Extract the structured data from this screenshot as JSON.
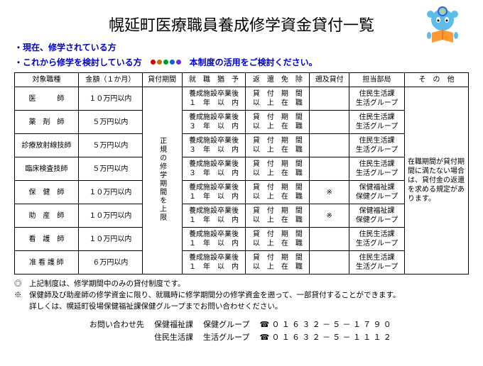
{
  "title": "幌延町医療職員養成修学資金貸付一覧",
  "sub1": "・現在、修学されている方",
  "sub2": "・これから修学を検討している方",
  "sub3": "本制度の活用をご検討ください。",
  "dot_colors": [
    "#cc0000",
    "#cc6600",
    "#009933",
    "#0066cc",
    "#6633cc"
  ],
  "columns": {
    "c0": "対象職種",
    "c1": "金額（１か月）",
    "c2": "貸付期間",
    "c3": "就　職　猶　予",
    "c4": "返　還　免　除",
    "c5": "遡及貸付",
    "c6": "担当部局",
    "c7": "そ　の　他"
  },
  "period_text": "正規の修学期間を上限",
  "rows": [
    {
      "job": "医　　　師",
      "amt": "１０万円以内",
      "grace": "養成施設卒業後１　年　以　内",
      "exempt": "貸　付　期　間以　上　在　職",
      "retro": "",
      "dept": "住民生活課生活グループ"
    },
    {
      "job": "薬　剤　師",
      "amt": "５万円以内",
      "grace": "養成施設卒業後３　年　以　内",
      "exempt": "貸　付　期　間以　上　在　職",
      "retro": "",
      "dept": "住民生活課生活グループ"
    },
    {
      "job": "診療放射線技師",
      "amt": "５万円以内",
      "grace": "養成施設卒業後３　年　以　内",
      "exempt": "貸　付　期　間以　上　在　職",
      "retro": "",
      "dept": "住民生活課生活グループ"
    },
    {
      "job": "臨床検査技師",
      "amt": "５万円以内",
      "grace": "養成施設卒業後３　年　以　内",
      "exempt": "貸　付　期　間以　上　在　職",
      "retro": "",
      "dept": "住民生活課生活グループ"
    },
    {
      "job": "保　健　師",
      "amt": "１０万円以内",
      "grace": "養成施設卒業後１　年　以　内",
      "exempt": "貸　付　期　間以　上　在　職",
      "retro": "※",
      "dept": "保健福祉課保健グループ"
    },
    {
      "job": "助　産　師",
      "amt": "１０万円以内",
      "grace": "養成施設卒業後１　年　以　内",
      "exempt": "貸　付　期　間以　上　在　職",
      "retro": "※",
      "dept": "保健福祉課保健グループ"
    },
    {
      "job": "看　護　師",
      "amt": "１０万円以内",
      "grace": "養成施設卒業後１　年　以　内",
      "exempt": "貸　付　期　間以　上　在　職",
      "retro": "",
      "dept": "住民生活課生活グループ"
    },
    {
      "job": "准 看 護 師",
      "amt": "６万円以内",
      "grace": "養成施設卒業後１　年　以　内",
      "exempt": "貸　付　期　間以　上　在　職",
      "retro": "",
      "dept": "住民生活課生活グループ"
    }
  ],
  "other_text": "在職期間が貸付期間に満たない場合は、貸付金の返還を求める規定があります。",
  "note1": "◎　上記制度は、修学期間中のみの貸付制度です。",
  "note2": "※　保健師及び助産師の修学資金に限り、就職時に修学期間分の修学資金を遡って、一部貸付することができます。",
  "note3": "　　詳しくは、幌延町役場保健福祉課保健グループまでお問い合わせください。",
  "contact_label": "お問い合わせ先",
  "contact1a": "保健福祉課",
  "contact1b": "保健グループ",
  "contact1c": "☎０１６３２－５－１７９０",
  "contact2a": "住民生活課",
  "contact2b": "生活グループ",
  "contact2c": "☎０１６３２－５－１１１２"
}
